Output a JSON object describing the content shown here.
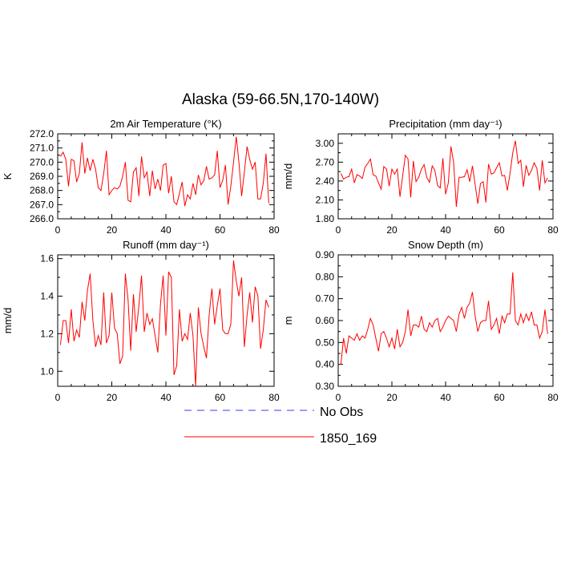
{
  "title": "Alaska (59-66.5N,170-140W)",
  "legend": {
    "position": "bottom-center",
    "entries": [
      {
        "label": "No Obs",
        "color": "#3a3aff",
        "style": "dashed"
      },
      {
        "label": "1850_169",
        "color": "#ff0000",
        "style": "solid"
      }
    ]
  },
  "chart_data": [
    {
      "type": "line",
      "title": "2m Air Temperature (°K)",
      "ylabel": "K",
      "xlabel": "",
      "xlim": [
        0,
        80
      ],
      "ylim": [
        266.0,
        272.0
      ],
      "xticks": [
        0,
        20,
        40,
        60,
        80
      ],
      "yticks": [
        266.0,
        267.0,
        268.0,
        269.0,
        270.0,
        271.0,
        272.0
      ],
      "ytick_labels": [
        "266.0",
        "267.0",
        "268.0",
        "269.0",
        "270.0",
        "271.0",
        "272.0"
      ],
      "series": [
        {
          "name": "1850_169",
          "color": "#ff0000",
          "x": [
            1,
            2,
            3,
            4,
            5,
            6,
            7,
            8,
            9,
            10,
            11,
            12,
            13,
            14,
            15,
            16,
            17,
            18,
            19,
            20,
            21,
            22,
            23,
            24,
            25,
            26,
            27,
            28,
            29,
            30,
            31,
            32,
            33,
            34,
            35,
            36,
            37,
            38,
            39,
            40,
            41,
            42,
            43,
            44,
            45,
            46,
            47,
            48,
            49,
            50,
            51,
            52,
            53,
            54,
            55,
            56,
            57,
            58,
            59,
            60,
            61,
            62,
            63,
            64,
            65,
            66,
            67,
            68,
            69,
            70,
            71,
            72,
            73,
            74,
            75,
            76,
            77,
            78
          ],
          "values": [
            270.4,
            270.7,
            270.2,
            268.3,
            270.2,
            270.1,
            268.6,
            269.2,
            271.4,
            269.2,
            270.3,
            269.4,
            270.2,
            269.5,
            268.2,
            268.0,
            269.2,
            270.8,
            267.7,
            268.0,
            268.2,
            268.1,
            268.3,
            269.0,
            270.0,
            267.3,
            267.2,
            269.3,
            269.6,
            267.6,
            270.4,
            268.9,
            269.3,
            267.6,
            269.4,
            268.1,
            268.8,
            268.0,
            269.8,
            269.9,
            267.8,
            269.0,
            267.2,
            267.0,
            267.8,
            268.6,
            266.9,
            267.7,
            267.4,
            268.5,
            267.7,
            269.1,
            268.4,
            268.7,
            269.7,
            268.8,
            268.9,
            269.1,
            270.8,
            268.2,
            268.7,
            269.8,
            267.0,
            268.3,
            270.0,
            271.8,
            270.0,
            267.6,
            269.3,
            271.1,
            270.2,
            269.5,
            270.0,
            267.4,
            267.4,
            268.5,
            270.6,
            267.1
          ]
        }
      ]
    },
    {
      "type": "line",
      "title": "Precipitation (mm day⁻¹)",
      "ylabel": "mm/d",
      "xlabel": "",
      "xlim": [
        0,
        80
      ],
      "ylim": [
        1.8,
        3.15
      ],
      "xticks": [
        0,
        20,
        40,
        60,
        80
      ],
      "yticks": [
        1.8,
        2.1,
        2.4,
        2.7,
        3.0
      ],
      "ytick_labels": [
        "1.80",
        "2.10",
        "2.40",
        "2.70",
        "3.00"
      ],
      "series": [
        {
          "name": "1850_169",
          "color": "#ff0000",
          "x": [
            1,
            2,
            3,
            4,
            5,
            6,
            7,
            8,
            9,
            10,
            11,
            12,
            13,
            14,
            15,
            16,
            17,
            18,
            19,
            20,
            21,
            22,
            23,
            24,
            25,
            26,
            27,
            28,
            29,
            30,
            31,
            32,
            33,
            34,
            35,
            36,
            37,
            38,
            39,
            40,
            41,
            42,
            43,
            44,
            45,
            46,
            47,
            48,
            49,
            50,
            51,
            52,
            53,
            54,
            55,
            56,
            57,
            58,
            59,
            60,
            61,
            62,
            63,
            64,
            65,
            66,
            67,
            68,
            69,
            70,
            71,
            72,
            73,
            74,
            75,
            76,
            77,
            78
          ],
          "values": [
            2.52,
            2.43,
            2.46,
            2.47,
            2.59,
            2.37,
            2.5,
            2.48,
            2.44,
            2.62,
            2.68,
            2.75,
            2.5,
            2.48,
            2.37,
            2.27,
            2.63,
            2.59,
            2.32,
            2.59,
            2.51,
            2.59,
            2.15,
            2.48,
            2.81,
            2.75,
            2.14,
            2.72,
            2.39,
            2.46,
            2.59,
            2.66,
            2.46,
            2.38,
            2.64,
            2.57,
            2.33,
            2.29,
            2.76,
            2.19,
            2.37,
            2.95,
            2.7,
            1.99,
            2.46,
            2.46,
            2.47,
            2.58,
            2.39,
            2.64,
            2.34,
            2.04,
            2.36,
            2.39,
            2.06,
            2.67,
            2.51,
            2.53,
            2.61,
            2.69,
            2.48,
            2.49,
            2.25,
            2.52,
            2.85,
            3.04,
            2.68,
            2.73,
            2.31,
            2.65,
            2.49,
            2.57,
            2.69,
            2.6,
            2.25,
            2.73,
            2.37,
            2.45
          ]
        }
      ]
    },
    {
      "type": "line",
      "title": "Runoff (mm day⁻¹)",
      "ylabel": "mm/d",
      "xlabel": "",
      "xlim": [
        0,
        80
      ],
      "ylim": [
        0.92,
        1.62
      ],
      "xticks": [
        0,
        20,
        40,
        60,
        80
      ],
      "yticks": [
        1.0,
        1.2,
        1.4,
        1.6
      ],
      "ytick_labels": [
        "1.0",
        "1.2",
        "1.4",
        "1.6"
      ],
      "series": [
        {
          "name": "1850_169",
          "color": "#ff0000",
          "x": [
            1,
            2,
            3,
            4,
            5,
            6,
            7,
            8,
            9,
            10,
            11,
            12,
            13,
            14,
            15,
            16,
            17,
            18,
            19,
            20,
            21,
            22,
            23,
            24,
            25,
            26,
            27,
            28,
            29,
            30,
            31,
            32,
            33,
            34,
            35,
            36,
            37,
            38,
            39,
            40,
            41,
            42,
            43,
            44,
            45,
            46,
            47,
            48,
            49,
            50,
            51,
            52,
            53,
            54,
            55,
            56,
            57,
            58,
            59,
            60,
            61,
            62,
            63,
            64,
            65,
            66,
            67,
            68,
            69,
            70,
            71,
            72,
            73,
            74,
            75,
            76,
            77,
            78
          ],
          "values": [
            1.14,
            1.27,
            1.27,
            1.15,
            1.33,
            1.16,
            1.22,
            1.18,
            1.37,
            1.27,
            1.43,
            1.52,
            1.27,
            1.13,
            1.19,
            1.14,
            1.42,
            1.15,
            1.19,
            1.42,
            1.23,
            1.2,
            1.04,
            1.08,
            1.52,
            1.38,
            1.11,
            1.41,
            1.21,
            1.35,
            1.51,
            1.21,
            1.31,
            1.25,
            1.28,
            1.19,
            1.1,
            1.36,
            1.51,
            1.19,
            1.53,
            1.5,
            0.98,
            1.03,
            1.33,
            1.16,
            1.2,
            1.17,
            1.31,
            1.19,
            0.92,
            1.34,
            1.2,
            1.13,
            1.07,
            1.3,
            1.44,
            1.25,
            1.35,
            1.44,
            1.22,
            1.2,
            1.2,
            1.25,
            1.59,
            1.48,
            1.4,
            1.5,
            1.13,
            1.3,
            1.42,
            1.26,
            1.45,
            1.4,
            1.12,
            1.22,
            1.38,
            1.34
          ]
        }
      ]
    },
    {
      "type": "line",
      "title": "Snow Depth (m)",
      "ylabel": "m",
      "xlabel": "",
      "xlim": [
        0,
        80
      ],
      "ylim": [
        0.3,
        0.9
      ],
      "xticks": [
        0,
        20,
        40,
        60,
        80
      ],
      "yticks": [
        0.3,
        0.4,
        0.5,
        0.6,
        0.7,
        0.8,
        0.9
      ],
      "ytick_labels": [
        "0.30",
        "0.40",
        "0.50",
        "0.60",
        "0.70",
        "0.80",
        "0.90"
      ],
      "series": [
        {
          "name": "1850_169",
          "color": "#ff0000",
          "x": [
            1,
            2,
            3,
            4,
            5,
            6,
            7,
            8,
            9,
            10,
            11,
            12,
            13,
            14,
            15,
            16,
            17,
            18,
            19,
            20,
            21,
            22,
            23,
            24,
            25,
            26,
            27,
            28,
            29,
            30,
            31,
            32,
            33,
            34,
            35,
            36,
            37,
            38,
            39,
            40,
            41,
            42,
            43,
            44,
            45,
            46,
            47,
            48,
            49,
            50,
            51,
            52,
            53,
            54,
            55,
            56,
            57,
            58,
            59,
            60,
            61,
            62,
            63,
            64,
            65,
            66,
            67,
            68,
            69,
            70,
            71,
            72,
            73,
            74,
            75,
            76,
            77,
            78
          ],
          "values": [
            0.4,
            0.52,
            0.45,
            0.53,
            0.52,
            0.51,
            0.54,
            0.51,
            0.53,
            0.52,
            0.56,
            0.61,
            0.58,
            0.52,
            0.46,
            0.54,
            0.55,
            0.52,
            0.48,
            0.52,
            0.47,
            0.56,
            0.48,
            0.5,
            0.55,
            0.65,
            0.53,
            0.58,
            0.58,
            0.57,
            0.62,
            0.56,
            0.55,
            0.59,
            0.57,
            0.6,
            0.61,
            0.55,
            0.57,
            0.6,
            0.62,
            0.61,
            0.6,
            0.55,
            0.63,
            0.66,
            0.61,
            0.66,
            0.68,
            0.73,
            0.62,
            0.55,
            0.59,
            0.6,
            0.6,
            0.69,
            0.56,
            0.58,
            0.61,
            0.54,
            0.62,
            0.59,
            0.63,
            0.63,
            0.82,
            0.6,
            0.58,
            0.63,
            0.59,
            0.63,
            0.6,
            0.64,
            0.58,
            0.58,
            0.52,
            0.55,
            0.65,
            0.54
          ]
        }
      ]
    }
  ]
}
